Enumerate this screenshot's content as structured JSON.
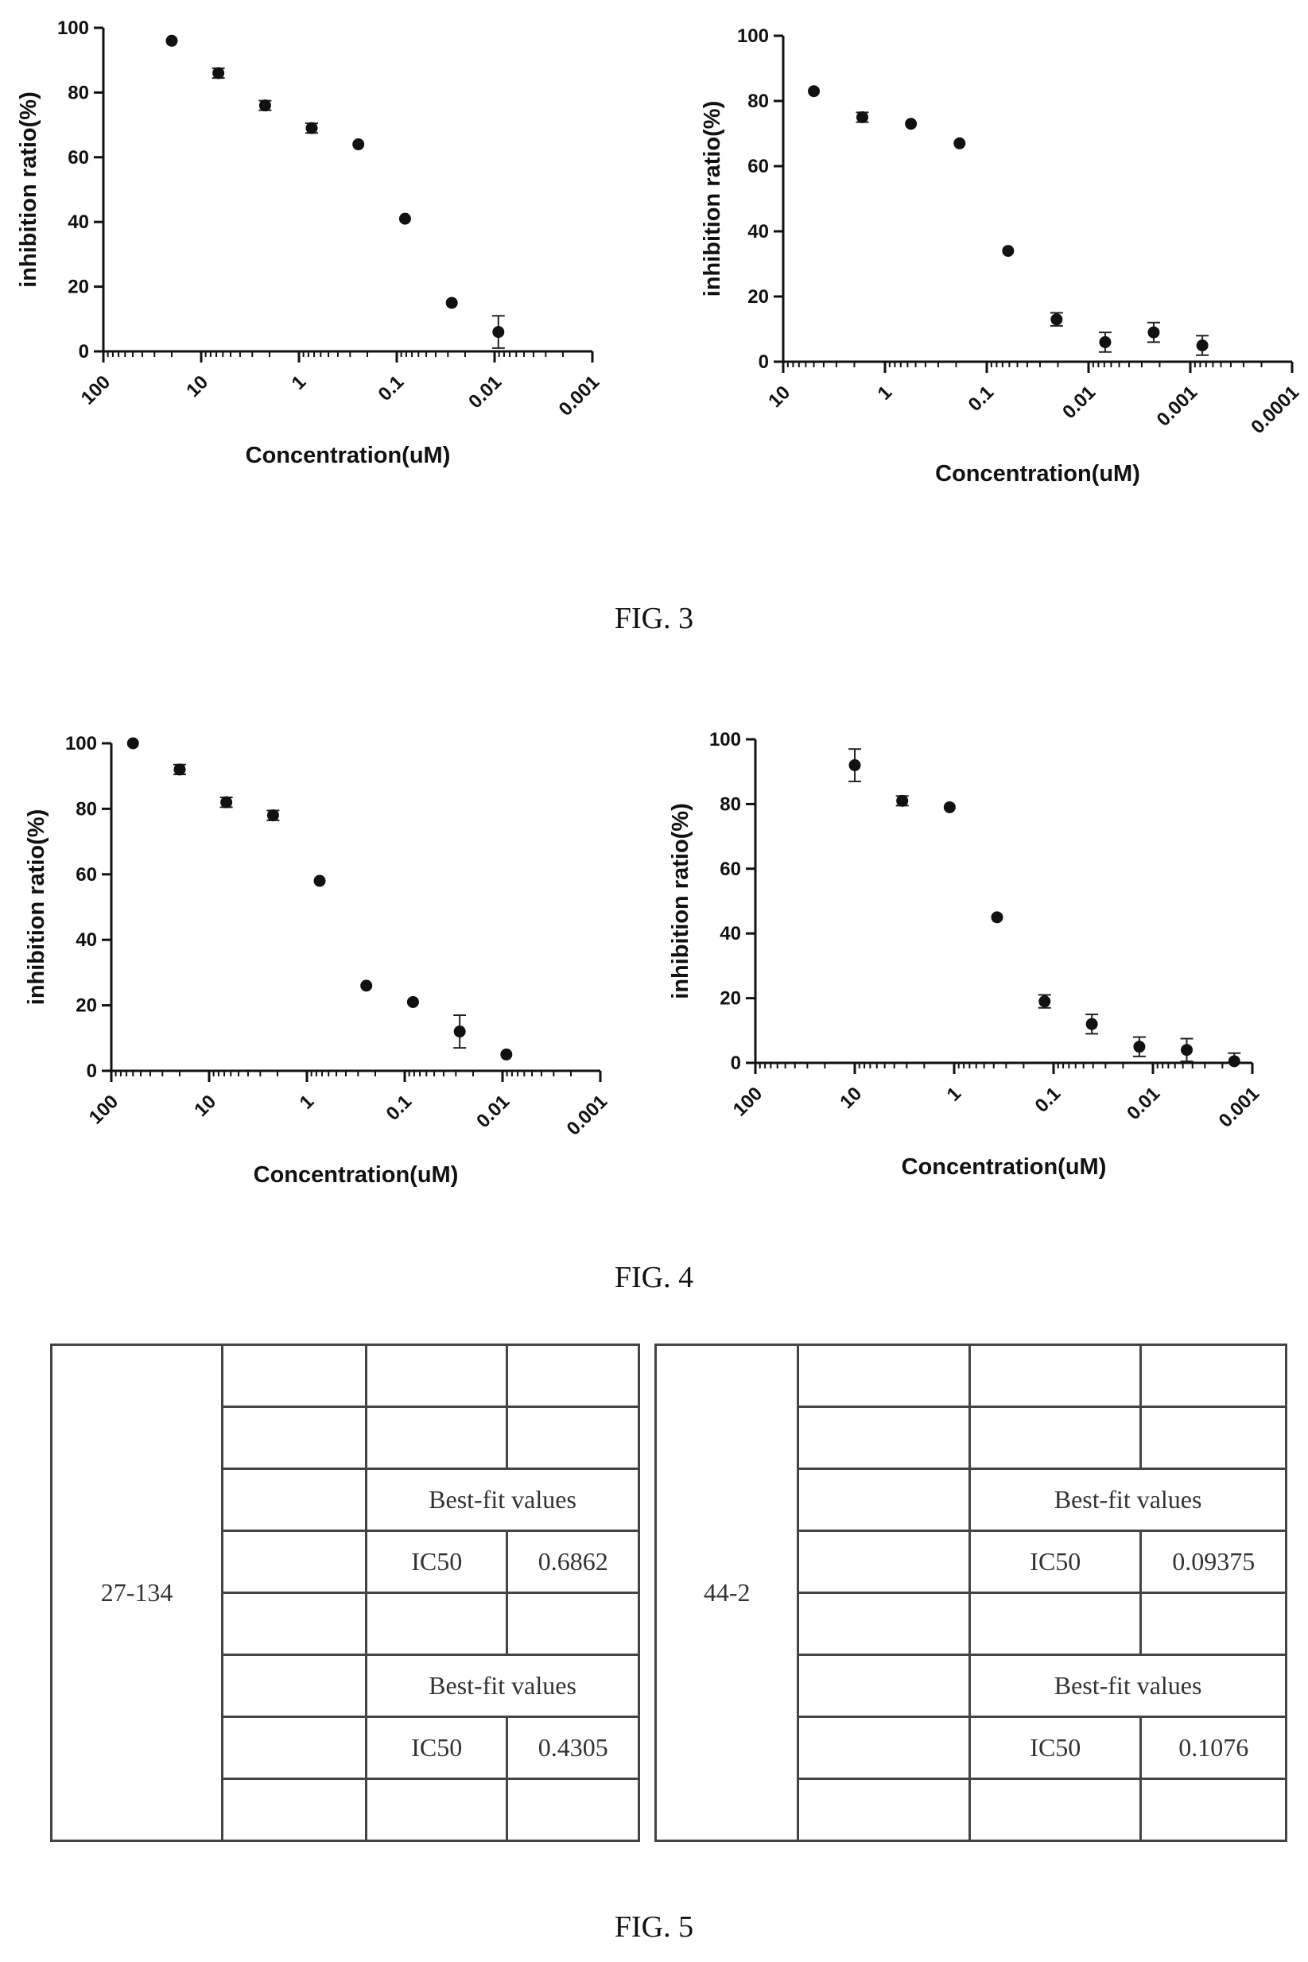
{
  "chart_data": [
    {
      "type": "scatter",
      "figure": "FIG. 3",
      "xlabel": "Concentration(uM)",
      "ylabel": "inhibition ratio(%)",
      "xscale": "log",
      "x_reversed": true,
      "xlim": [
        100,
        0.001
      ],
      "ylim": [
        0,
        100
      ],
      "xticks": [
        "100",
        "10",
        "1",
        "0.1",
        "0.01",
        "0.001"
      ],
      "yticks": [
        "0",
        "20",
        "40",
        "60",
        "80",
        "100"
      ],
      "points": [
        {
          "x": 20,
          "y": 96,
          "err": 0
        },
        {
          "x": 6.67,
          "y": 86,
          "err": 1.5
        },
        {
          "x": 2.22,
          "y": 76,
          "err": 1.5
        },
        {
          "x": 0.741,
          "y": 69,
          "err": 1.5
        },
        {
          "x": 0.247,
          "y": 64,
          "err": 0
        },
        {
          "x": 0.0823,
          "y": 41,
          "err": 0
        },
        {
          "x": 0.0274,
          "y": 15,
          "err": 0
        },
        {
          "x": 0.00914,
          "y": 6,
          "err": 5
        }
      ]
    },
    {
      "type": "scatter",
      "figure": "FIG. 3",
      "xlabel": "Concentration(uM)",
      "ylabel": "inhibition ratio(%)",
      "xscale": "log",
      "x_reversed": true,
      "xlim": [
        10,
        0.0001
      ],
      "ylim": [
        0,
        100
      ],
      "xticks": [
        "10",
        "1",
        "0.1",
        "0.01",
        "0.001",
        "0.0001"
      ],
      "yticks": [
        "0",
        "20",
        "40",
        "60",
        "80",
        "100"
      ],
      "points": [
        {
          "x": 5,
          "y": 83,
          "err": 0
        },
        {
          "x": 1.67,
          "y": 75,
          "err": 1.5
        },
        {
          "x": 0.556,
          "y": 73,
          "err": 0
        },
        {
          "x": 0.185,
          "y": 67,
          "err": 0
        },
        {
          "x": 0.0617,
          "y": 34,
          "err": 0
        },
        {
          "x": 0.0206,
          "y": 13,
          "err": 2
        },
        {
          "x": 0.00686,
          "y": 6,
          "err": 3
        },
        {
          "x": 0.00229,
          "y": 9,
          "err": 3
        },
        {
          "x": 0.000762,
          "y": 5,
          "err": 3
        }
      ]
    },
    {
      "type": "scatter",
      "figure": "FIG. 4",
      "xlabel": "Concentration(uM)",
      "ylabel": "inhibition ratio(%)",
      "xscale": "log",
      "x_reversed": true,
      "xlim": [
        100,
        0.001
      ],
      "ylim": [
        0,
        100
      ],
      "xticks": [
        "100",
        "10",
        "1",
        "0.1",
        "0.01",
        "0.001"
      ],
      "yticks": [
        "0",
        "20",
        "40",
        "60",
        "80",
        "100"
      ],
      "points": [
        {
          "x": 60,
          "y": 100,
          "err": 0
        },
        {
          "x": 20,
          "y": 92,
          "err": 1.5
        },
        {
          "x": 6.67,
          "y": 82,
          "err": 1.5
        },
        {
          "x": 2.22,
          "y": 78,
          "err": 1.5
        },
        {
          "x": 0.741,
          "y": 58,
          "err": 0
        },
        {
          "x": 0.247,
          "y": 26,
          "err": 0
        },
        {
          "x": 0.0823,
          "y": 21,
          "err": 0
        },
        {
          "x": 0.0274,
          "y": 12,
          "err": 5
        },
        {
          "x": 0.00914,
          "y": 5,
          "err": 0
        }
      ]
    },
    {
      "type": "scatter",
      "figure": "FIG. 4",
      "xlabel": "Concentration(uM)",
      "ylabel": "inhibition ratio(%)",
      "xscale": "log",
      "x_reversed": true,
      "xlim": [
        100,
        0.001
      ],
      "ylim": [
        0,
        100
      ],
      "xticks": [
        "100",
        "10",
        "1",
        "0.1",
        "0.01",
        "0.001"
      ],
      "yticks": [
        "0",
        "20",
        "40",
        "60",
        "80",
        "100"
      ],
      "points": [
        {
          "x": 10,
          "y": 92,
          "err": 5
        },
        {
          "x": 3.33,
          "y": 81,
          "err": 1.5
        },
        {
          "x": 1.11,
          "y": 79,
          "err": 0
        },
        {
          "x": 0.37,
          "y": 45,
          "err": 0
        },
        {
          "x": 0.123,
          "y": 19,
          "err": 2
        },
        {
          "x": 0.0412,
          "y": 12,
          "err": 3
        },
        {
          "x": 0.0137,
          "y": 5,
          "err": 3
        },
        {
          "x": 0.00457,
          "y": 4,
          "err": 3.5
        },
        {
          "x": 0.00152,
          "y": 0.5,
          "err": 2.5
        }
      ]
    }
  ],
  "captions": {
    "fig3": "FIG. 3",
    "fig4": "FIG. 4",
    "fig5": "FIG. 5"
  },
  "tables": [
    {
      "id": "27-134",
      "fit1_header": "Best-fit values",
      "fit1_name": "IC50",
      "fit1_value": "0.6862",
      "fit2_header": "Best-fit values",
      "fit2_name": "IC50",
      "fit2_value": "0.4305"
    },
    {
      "id": "44-2",
      "fit1_header": "Best-fit values",
      "fit1_name": "IC50",
      "fit1_value": "0.09375",
      "fit2_header": "Best-fit values",
      "fit2_name": "IC50",
      "fit2_value": "0.1076"
    }
  ]
}
